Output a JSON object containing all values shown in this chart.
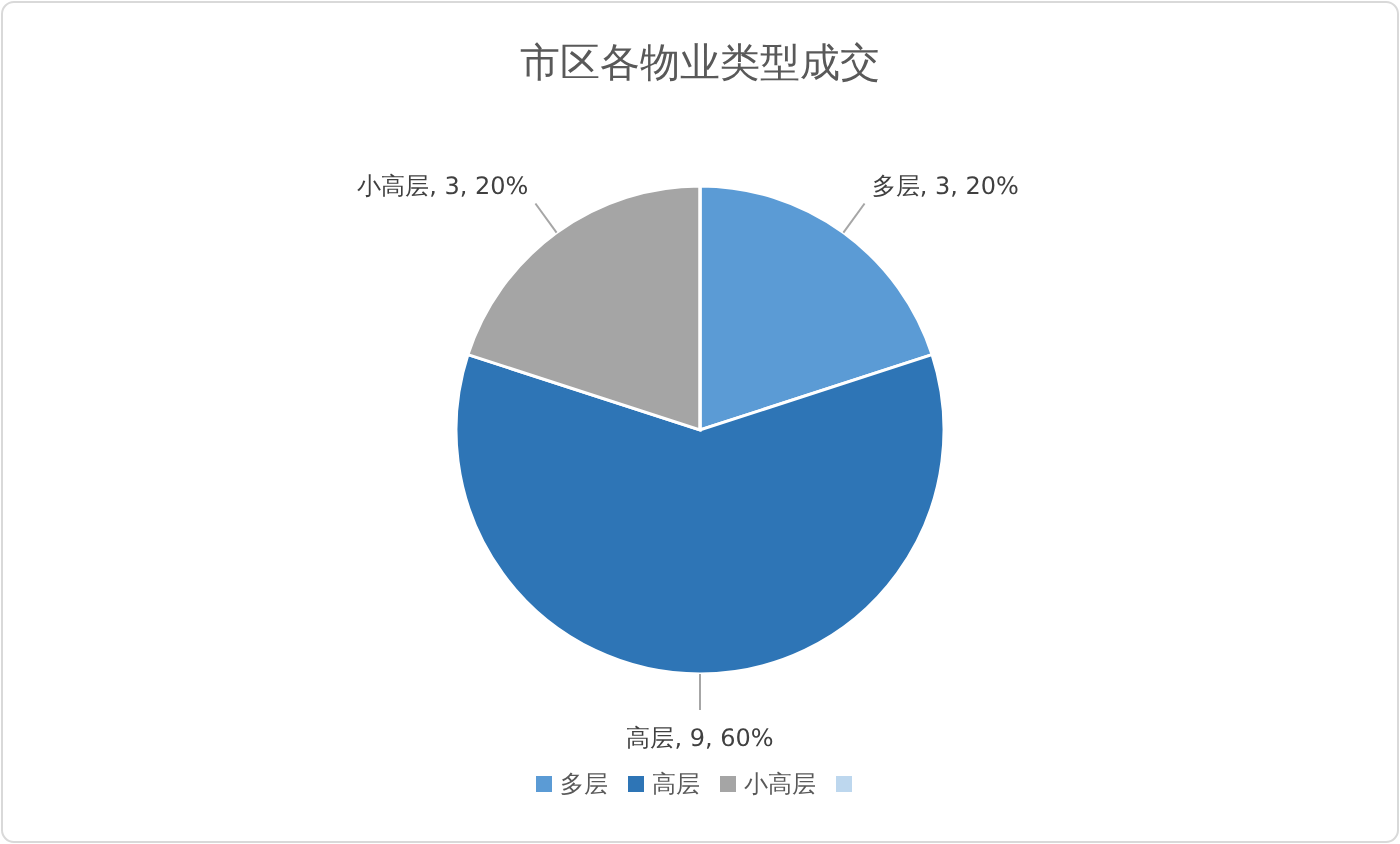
{
  "chart_data": {
    "type": "pie",
    "title": "市区各物业类型成交",
    "categories": [
      "多层",
      "高层",
      "小高层",
      null
    ],
    "values": [
      3,
      9,
      3,
      0
    ],
    "colors": [
      "#5b9bd5",
      "#2e75b6",
      "#a5a5a5",
      "#bdd7ee"
    ],
    "value_labels": [
      "多层, 3, 20%",
      "高层, 9, 60%",
      "小高层, 3, 20%",
      null
    ],
    "legend": "bottom"
  }
}
